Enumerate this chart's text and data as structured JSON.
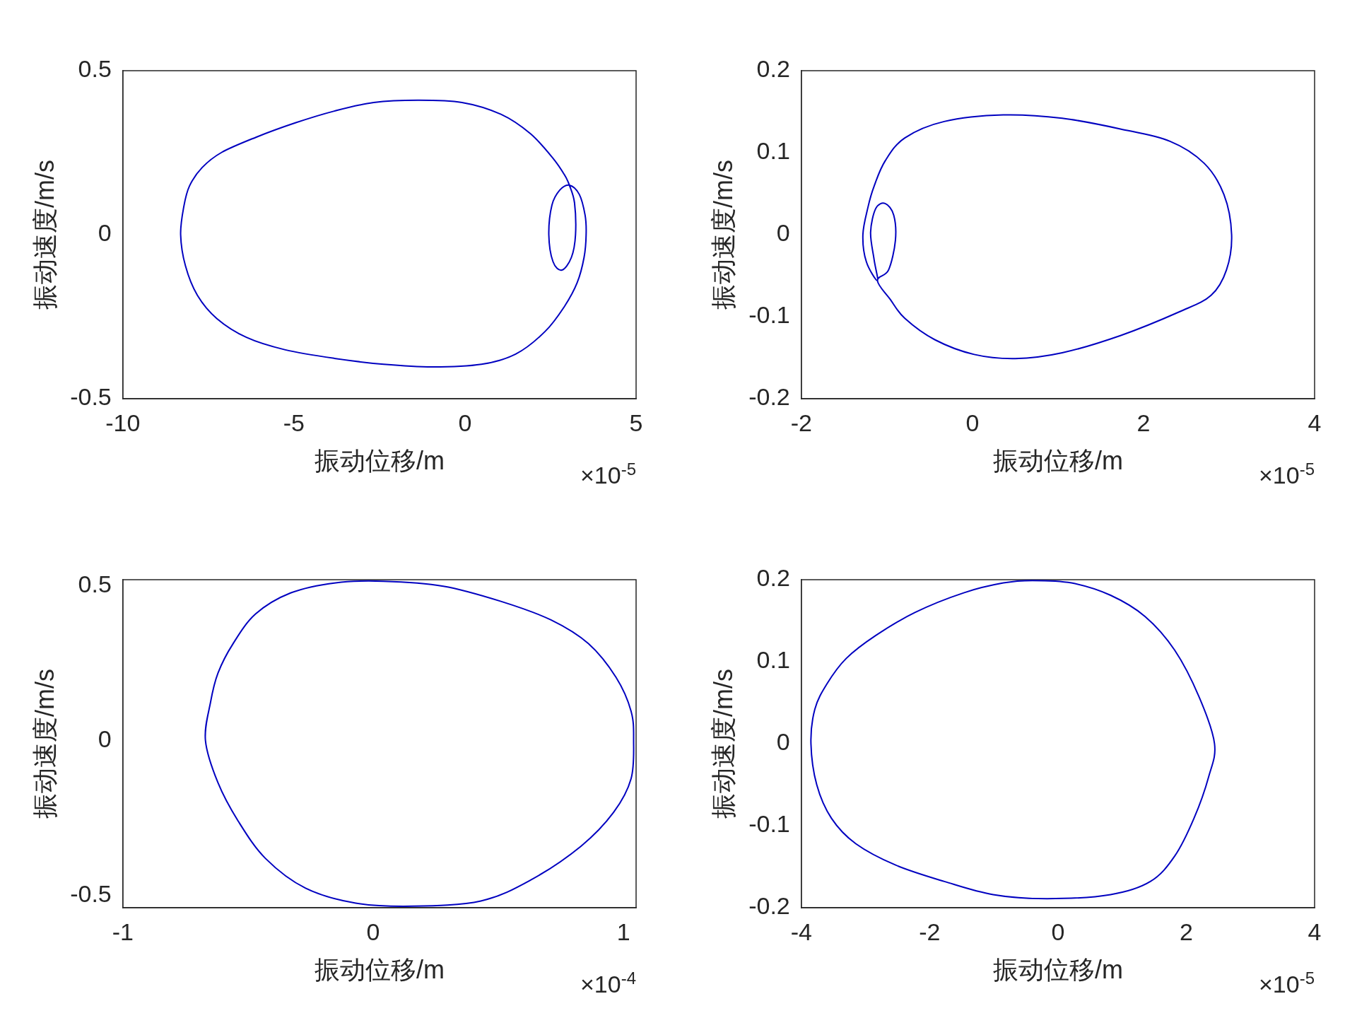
{
  "chart_data": [
    {
      "type": "line",
      "xlabel": "振动位移/m",
      "ylabel": "振动速度/m/s",
      "annotations": [
        "×10$^{-5}$"
      ],
      "xlim": [
        -10,
        5
      ],
      "ylim": [
        -0.5,
        0.5
      ],
      "xticks": [
        -10,
        -5,
        0,
        5
      ],
      "yticks": [
        -0.5,
        0,
        0.5
      ]
    },
    {
      "type": "line",
      "xlabel": "振动位移/m",
      "ylabel": "振动速度/m/s",
      "annotations": [
        "×10$^{-5}$"
      ],
      "xlim": [
        -2,
        4
      ],
      "ylim": [
        -0.2,
        0.2
      ],
      "xticks": [
        -2,
        0,
        2,
        4
      ],
      "yticks": [
        -0.2,
        -0.1,
        0,
        0.1,
        0.2
      ]
    },
    {
      "type": "line",
      "xlabel": "振动位移/m",
      "ylabel": "振动速度/m/s",
      "annotations": [
        "×10$^{-4}$"
      ],
      "xlim": [
        -1,
        1.05
      ],
      "ylim": [
        -0.54,
        0.52
      ],
      "xticks": [
        -1,
        0,
        1
      ],
      "yticks": [
        -0.5,
        0,
        0.5
      ]
    },
    {
      "type": "line",
      "xlabel": "振动位移/m",
      "ylabel": "振动速度/m/s",
      "annotations": [
        "×10$^{-5}$"
      ],
      "xlim": [
        -4,
        4
      ],
      "ylim": [
        -0.2,
        0.2
      ],
      "xticks": [
        -4,
        -2,
        0,
        2,
        4
      ],
      "yticks": [
        -0.2,
        -0.1,
        0,
        0.1,
        0.2
      ]
    }
  ]
}
